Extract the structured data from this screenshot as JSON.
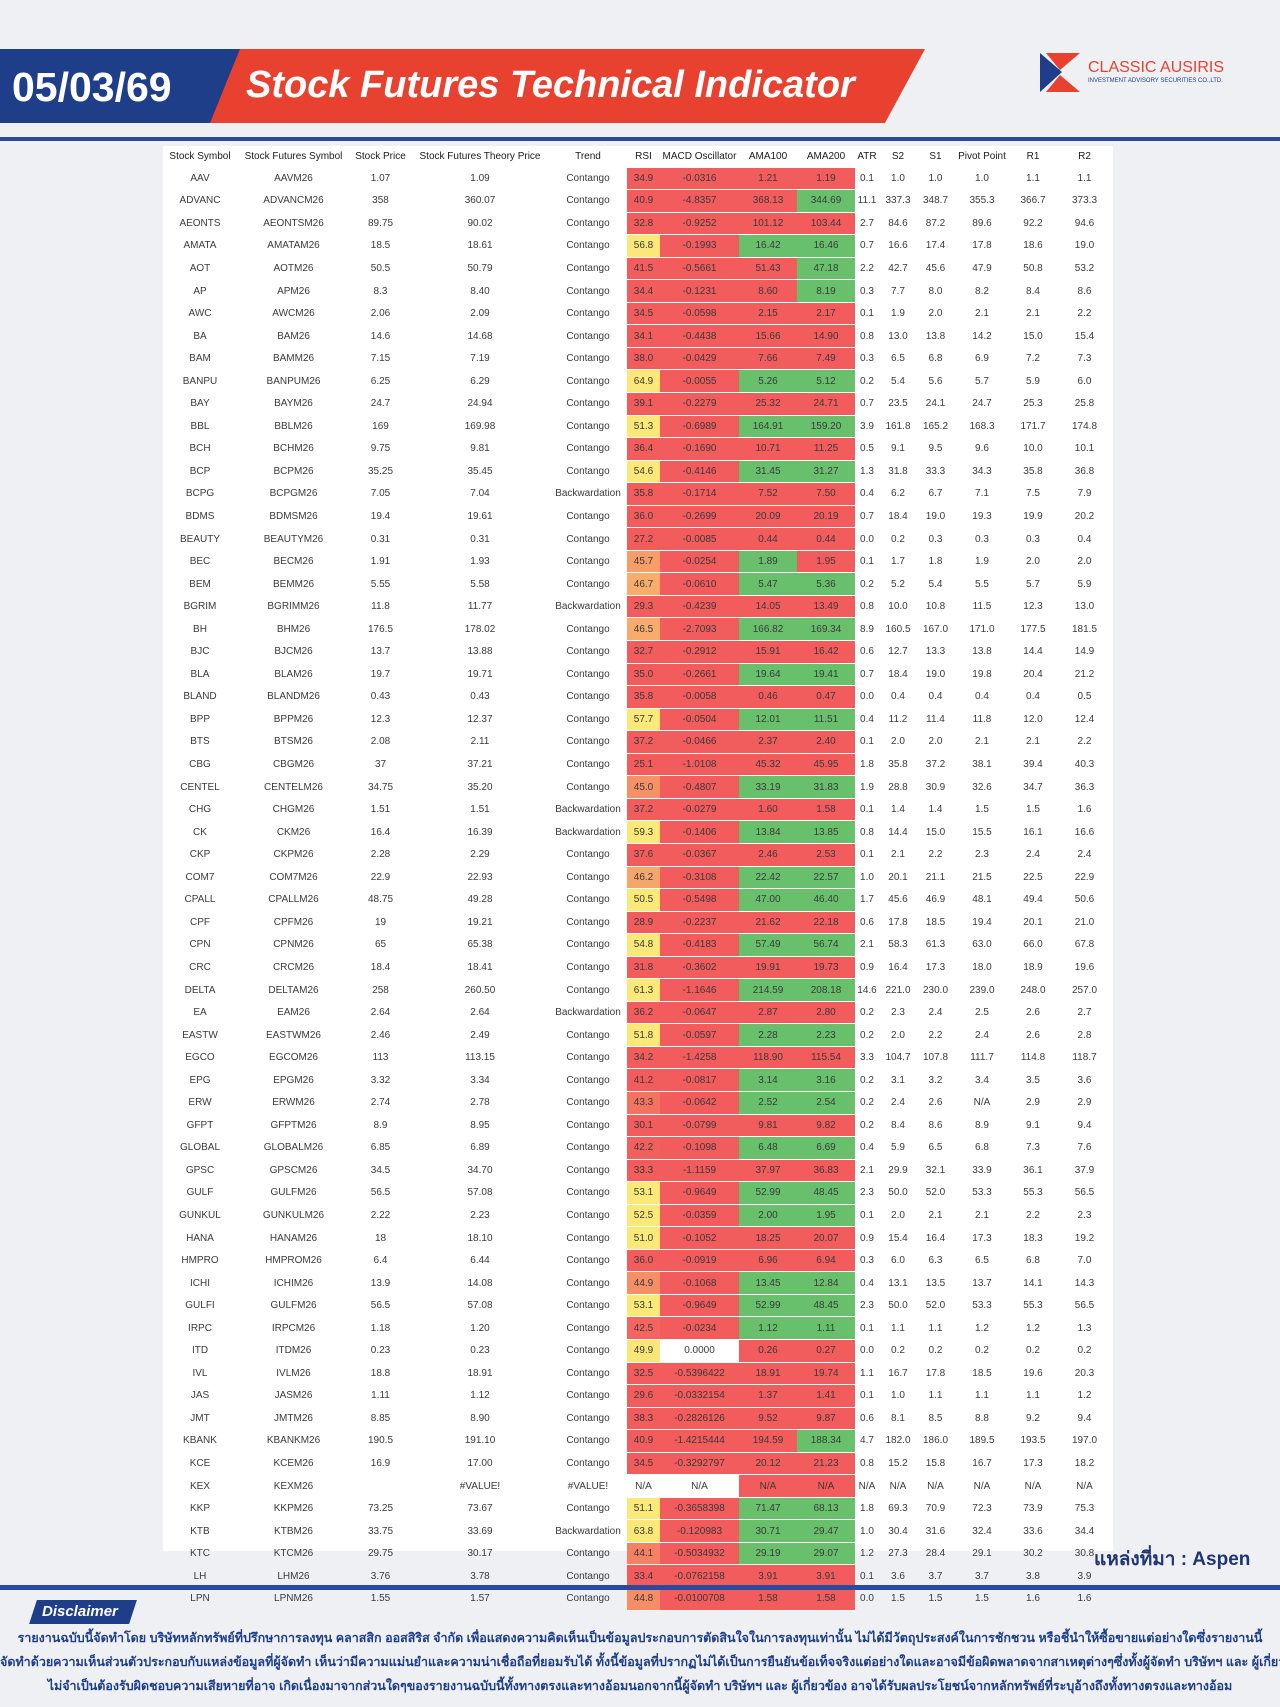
{
  "header": {
    "date": "05/03/69",
    "title": "Stock Futures Technical Indicator",
    "logo": {
      "name": "CLASSIC AUSIRIS",
      "tagline": "INVESTMENT ADVISORY SECURITIES CO.,LTD."
    }
  },
  "table": {
    "columns": [
      "Stock Symbol",
      "Stock Futures Symbol",
      "Stock Price",
      "Stock Futures Theory Price",
      "Trend",
      "RSI",
      "MACD Oscillator",
      "AMA100",
      "AMA200",
      "ATR",
      "S2",
      "S1",
      "Pivot Point",
      "R1",
      "R2"
    ],
    "rows": [
      [
        "AAV",
        "AAVM26",
        "1.07",
        "1.09",
        "Contango",
        "34.9",
        "-0.0316",
        "1.21",
        "1.19",
        "0.1",
        "1.0",
        "1.0",
        "1.0",
        "1.1",
        "1.1"
      ],
      [
        "ADVANC",
        "ADVANCM26",
        "358",
        "360.07",
        "Contango",
        "40.9",
        "-4.8357",
        "368.13",
        "344.69",
        "11.1",
        "337.3",
        "348.7",
        "355.3",
        "366.7",
        "373.3"
      ],
      [
        "AEONTS",
        "AEONTSM26",
        "89.75",
        "90.02",
        "Contango",
        "32.8",
        "-0.9252",
        "101.12",
        "103.44",
        "2.7",
        "84.6",
        "87.2",
        "89.6",
        "92.2",
        "94.6"
      ],
      [
        "AMATA",
        "AMATAM26",
        "18.5",
        "18.61",
        "Contango",
        "56.8",
        "-0.1993",
        "16.42",
        "16.46",
        "0.7",
        "16.6",
        "17.4",
        "17.8",
        "18.6",
        "19.0"
      ],
      [
        "AOT",
        "AOTM26",
        "50.5",
        "50.79",
        "Contango",
        "41.5",
        "-0.5661",
        "51.43",
        "47.18",
        "2.2",
        "42.7",
        "45.6",
        "47.9",
        "50.8",
        "53.2"
      ],
      [
        "AP",
        "APM26",
        "8.3",
        "8.40",
        "Contango",
        "34.4",
        "-0.1231",
        "8.60",
        "8.19",
        "0.3",
        "7.7",
        "8.0",
        "8.2",
        "8.4",
        "8.6"
      ],
      [
        "AWC",
        "AWCM26",
        "2.06",
        "2.09",
        "Contango",
        "34.5",
        "-0.0598",
        "2.15",
        "2.17",
        "0.1",
        "1.9",
        "2.0",
        "2.1",
        "2.1",
        "2.2"
      ],
      [
        "BA",
        "BAM26",
        "14.6",
        "14.68",
        "Contango",
        "34.1",
        "-0.4438",
        "15.66",
        "14.90",
        "0.8",
        "13.0",
        "13.8",
        "14.2",
        "15.0",
        "15.4"
      ],
      [
        "BAM",
        "BAMM26",
        "7.15",
        "7.19",
        "Contango",
        "38.0",
        "-0.0429",
        "7.66",
        "7.49",
        "0.3",
        "6.5",
        "6.8",
        "6.9",
        "7.2",
        "7.3"
      ],
      [
        "BANPU",
        "BANPUM26",
        "6.25",
        "6.29",
        "Contango",
        "64.9",
        "-0.0055",
        "5.26",
        "5.12",
        "0.2",
        "5.4",
        "5.6",
        "5.7",
        "5.9",
        "6.0"
      ],
      [
        "BAY",
        "BAYM26",
        "24.7",
        "24.94",
        "Contango",
        "39.1",
        "-0.2279",
        "25.32",
        "24.71",
        "0.7",
        "23.5",
        "24.1",
        "24.7",
        "25.3",
        "25.8"
      ],
      [
        "BBL",
        "BBLM26",
        "169",
        "169.98",
        "Contango",
        "51.3",
        "-0.6989",
        "164.91",
        "159.20",
        "3.9",
        "161.8",
        "165.2",
        "168.3",
        "171.7",
        "174.8"
      ],
      [
        "BCH",
        "BCHM26",
        "9.75",
        "9.81",
        "Contango",
        "36.4",
        "-0.1690",
        "10.71",
        "11.25",
        "0.5",
        "9.1",
        "9.5",
        "9.6",
        "10.0",
        "10.1"
      ],
      [
        "BCP",
        "BCPM26",
        "35.25",
        "35.45",
        "Contango",
        "54.6",
        "-0.4146",
        "31.45",
        "31.27",
        "1.3",
        "31.8",
        "33.3",
        "34.3",
        "35.8",
        "36.8"
      ],
      [
        "BCPG",
        "BCPGM26",
        "7.05",
        "7.04",
        "Backwardation",
        "35.8",
        "-0.1714",
        "7.52",
        "7.50",
        "0.4",
        "6.2",
        "6.7",
        "7.1",
        "7.5",
        "7.9"
      ],
      [
        "BDMS",
        "BDMSM26",
        "19.4",
        "19.61",
        "Contango",
        "36.0",
        "-0.2699",
        "20.09",
        "20.19",
        "0.7",
        "18.4",
        "19.0",
        "19.3",
        "19.9",
        "20.2"
      ],
      [
        "BEAUTY",
        "BEAUTYM26",
        "0.31",
        "0.31",
        "Contango",
        "27.2",
        "-0.0085",
        "0.44",
        "0.44",
        "0.0",
        "0.2",
        "0.3",
        "0.3",
        "0.3",
        "0.4"
      ],
      [
        "BEC",
        "BECM26",
        "1.91",
        "1.93",
        "Contango",
        "45.7",
        "-0.0254",
        "1.89",
        "1.95",
        "0.1",
        "1.7",
        "1.8",
        "1.9",
        "2.0",
        "2.0"
      ],
      [
        "BEM",
        "BEMM26",
        "5.55",
        "5.58",
        "Contango",
        "46.7",
        "-0.0610",
        "5.47",
        "5.36",
        "0.2",
        "5.2",
        "5.4",
        "5.5",
        "5.7",
        "5.9"
      ],
      [
        "BGRIM",
        "BGRIMM26",
        "11.8",
        "11.77",
        "Backwardation",
        "29.3",
        "-0.4239",
        "14.05",
        "13.49",
        "0.8",
        "10.0",
        "10.8",
        "11.5",
        "12.3",
        "13.0"
      ],
      [
        "BH",
        "BHM26",
        "176.5",
        "178.02",
        "Contango",
        "46.5",
        "-2.7093",
        "166.82",
        "169.34",
        "8.9",
        "160.5",
        "167.0",
        "171.0",
        "177.5",
        "181.5"
      ],
      [
        "BJC",
        "BJCM26",
        "13.7",
        "13.88",
        "Contango",
        "32.7",
        "-0.2912",
        "15.91",
        "16.42",
        "0.6",
        "12.7",
        "13.3",
        "13.8",
        "14.4",
        "14.9"
      ],
      [
        "BLA",
        "BLAM26",
        "19.7",
        "19.71",
        "Contango",
        "35.0",
        "-0.2661",
        "19.64",
        "19.41",
        "0.7",
        "18.4",
        "19.0",
        "19.8",
        "20.4",
        "21.2"
      ],
      [
        "BLAND",
        "BLANDM26",
        "0.43",
        "0.43",
        "Contango",
        "35.8",
        "-0.0058",
        "0.46",
        "0.47",
        "0.0",
        "0.4",
        "0.4",
        "0.4",
        "0.4",
        "0.5"
      ],
      [
        "BPP",
        "BPPM26",
        "12.3",
        "12.37",
        "Contango",
        "57.7",
        "-0.0504",
        "12.01",
        "11.51",
        "0.4",
        "11.2",
        "11.4",
        "11.8",
        "12.0",
        "12.4"
      ],
      [
        "BTS",
        "BTSM26",
        "2.08",
        "2.11",
        "Contango",
        "37.2",
        "-0.0466",
        "2.37",
        "2.40",
        "0.1",
        "2.0",
        "2.0",
        "2.1",
        "2.1",
        "2.2"
      ],
      [
        "CBG",
        "CBGM26",
        "37",
        "37.21",
        "Contango",
        "25.1",
        "-1.0108",
        "45.32",
        "45.95",
        "1.8",
        "35.8",
        "37.2",
        "38.1",
        "39.4",
        "40.3"
      ],
      [
        "CENTEL",
        "CENTELM26",
        "34.75",
        "35.20",
        "Contango",
        "45.0",
        "-0.4807",
        "33.19",
        "31.83",
        "1.9",
        "28.8",
        "30.9",
        "32.6",
        "34.7",
        "36.3"
      ],
      [
        "CHG",
        "CHGM26",
        "1.51",
        "1.51",
        "Backwardation",
        "37.2",
        "-0.0279",
        "1.60",
        "1.58",
        "0.1",
        "1.4",
        "1.4",
        "1.5",
        "1.5",
        "1.6"
      ],
      [
        "CK",
        "CKM26",
        "16.4",
        "16.39",
        "Backwardation",
        "59.3",
        "-0.1406",
        "13.84",
        "13.85",
        "0.8",
        "14.4",
        "15.0",
        "15.5",
        "16.1",
        "16.6"
      ],
      [
        "CKP",
        "CKPM26",
        "2.28",
        "2.29",
        "Contango",
        "37.6",
        "-0.0367",
        "2.46",
        "2.53",
        "0.1",
        "2.1",
        "2.2",
        "2.3",
        "2.4",
        "2.4"
      ],
      [
        "COM7",
        "COM7M26",
        "22.9",
        "22.93",
        "Contango",
        "46.2",
        "-0.3108",
        "22.42",
        "22.57",
        "1.0",
        "20.1",
        "21.1",
        "21.5",
        "22.5",
        "22.9"
      ],
      [
        "CPALL",
        "CPALLM26",
        "48.75",
        "49.28",
        "Contango",
        "50.5",
        "-0.5498",
        "47.00",
        "46.40",
        "1.7",
        "45.6",
        "46.9",
        "48.1",
        "49.4",
        "50.6"
      ],
      [
        "CPF",
        "CPFM26",
        "19",
        "19.21",
        "Contango",
        "28.9",
        "-0.2237",
        "21.62",
        "22.18",
        "0.6",
        "17.8",
        "18.5",
        "19.4",
        "20.1",
        "21.0"
      ],
      [
        "CPN",
        "CPNM26",
        "65",
        "65.38",
        "Contango",
        "54.8",
        "-0.4183",
        "57.49",
        "56.74",
        "2.1",
        "58.3",
        "61.3",
        "63.0",
        "66.0",
        "67.8"
      ],
      [
        "CRC",
        "CRCM26",
        "18.4",
        "18.41",
        "Contango",
        "31.8",
        "-0.3602",
        "19.91",
        "19.73",
        "0.9",
        "16.4",
        "17.3",
        "18.0",
        "18.9",
        "19.6"
      ],
      [
        "DELTA",
        "DELTAM26",
        "258",
        "260.50",
        "Contango",
        "61.3",
        "-1.1646",
        "214.59",
        "208.18",
        "14.6",
        "221.0",
        "230.0",
        "239.0",
        "248.0",
        "257.0"
      ],
      [
        "EA",
        "EAM26",
        "2.64",
        "2.64",
        "Backwardation",
        "36.2",
        "-0.0647",
        "2.87",
        "2.80",
        "0.2",
        "2.3",
        "2.4",
        "2.5",
        "2.6",
        "2.7"
      ],
      [
        "EASTW",
        "EASTWM26",
        "2.46",
        "2.49",
        "Contango",
        "51.8",
        "-0.0597",
        "2.28",
        "2.23",
        "0.2",
        "2.0",
        "2.2",
        "2.4",
        "2.6",
        "2.8"
      ],
      [
        "EGCO",
        "EGCOM26",
        "113",
        "113.15",
        "Contango",
        "34.2",
        "-1.4258",
        "118.90",
        "115.54",
        "3.3",
        "104.7",
        "107.8",
        "111.7",
        "114.8",
        "118.7"
      ],
      [
        "EPG",
        "EPGM26",
        "3.32",
        "3.34",
        "Contango",
        "41.2",
        "-0.0817",
        "3.14",
        "3.16",
        "0.2",
        "3.1",
        "3.2",
        "3.4",
        "3.5",
        "3.6"
      ],
      [
        "ERW",
        "ERWM26",
        "2.74",
        "2.78",
        "Contango",
        "43.3",
        "-0.0642",
        "2.52",
        "2.54",
        "0.2",
        "2.4",
        "2.6",
        "N/A",
        "2.9",
        "2.9"
      ],
      [
        "GFPT",
        "GFPTM26",
        "8.9",
        "8.95",
        "Contango",
        "30.1",
        "-0.0799",
        "9.81",
        "9.82",
        "0.2",
        "8.4",
        "8.6",
        "8.9",
        "9.1",
        "9.4"
      ],
      [
        "GLOBAL",
        "GLOBALM26",
        "6.85",
        "6.89",
        "Contango",
        "42.2",
        "-0.1098",
        "6.48",
        "6.69",
        "0.4",
        "5.9",
        "6.5",
        "6.8",
        "7.3",
        "7.6"
      ],
      [
        "GPSC",
        "GPSCM26",
        "34.5",
        "34.70",
        "Contango",
        "33.3",
        "-1.1159",
        "37.97",
        "36.83",
        "2.1",
        "29.9",
        "32.1",
        "33.9",
        "36.1",
        "37.9"
      ],
      [
        "GULF",
        "GULFM26",
        "56.5",
        "57.08",
        "Contango",
        "53.1",
        "-0.9649",
        "52.99",
        "48.45",
        "2.3",
        "50.0",
        "52.0",
        "53.3",
        "55.3",
        "56.5"
      ],
      [
        "GUNKUL",
        "GUNKULM26",
        "2.22",
        "2.23",
        "Contango",
        "52.5",
        "-0.0359",
        "2.00",
        "1.95",
        "0.1",
        "2.0",
        "2.1",
        "2.1",
        "2.2",
        "2.3"
      ],
      [
        "HANA",
        "HANAM26",
        "18",
        "18.10",
        "Contango",
        "51.0",
        "-0.1052",
        "18.25",
        "20.07",
        "0.9",
        "15.4",
        "16.4",
        "17.3",
        "18.3",
        "19.2"
      ],
      [
        "HMPRO",
        "HMPROM26",
        "6.4",
        "6.44",
        "Contango",
        "36.0",
        "-0.0919",
        "6.96",
        "6.94",
        "0.3",
        "6.0",
        "6.3",
        "6.5",
        "6.8",
        "7.0"
      ],
      [
        "ICHI",
        "ICHIM26",
        "13.9",
        "14.08",
        "Contango",
        "44.9",
        "-0.1068",
        "13.45",
        "12.84",
        "0.4",
        "13.1",
        "13.5",
        "13.7",
        "14.1",
        "14.3"
      ],
      [
        "GULFI",
        "GULFM26",
        "56.5",
        "57.08",
        "Contango",
        "53.1",
        "-0.9649",
        "52.99",
        "48.45",
        "2.3",
        "50.0",
        "52.0",
        "53.3",
        "55.3",
        "56.5"
      ],
      [
        "IRPC",
        "IRPCM26",
        "1.18",
        "1.20",
        "Contango",
        "42.5",
        "-0.0234",
        "1.12",
        "1.11",
        "0.1",
        "1.1",
        "1.1",
        "1.2",
        "1.2",
        "1.3"
      ],
      [
        "ITD",
        "ITDM26",
        "0.23",
        "0.23",
        "Contango",
        "49.9",
        "0.0000",
        "0.26",
        "0.27",
        "0.0",
        "0.2",
        "0.2",
        "0.2",
        "0.2",
        "0.2"
      ],
      [
        "IVL",
        "IVLM26",
        "18.8",
        "18.91",
        "Contango",
        "32.5",
        "-0.5396422",
        "18.91",
        "19.74",
        "1.1",
        "16.7",
        "17.8",
        "18.5",
        "19.6",
        "20.3"
      ],
      [
        "JAS",
        "JASM26",
        "1.11",
        "1.12",
        "Contango",
        "29.6",
        "-0.0332154",
        "1.37",
        "1.41",
        "0.1",
        "1.0",
        "1.1",
        "1.1",
        "1.1",
        "1.2"
      ],
      [
        "JMT",
        "JMTM26",
        "8.85",
        "8.90",
        "Contango",
        "38.3",
        "-0.2826126",
        "9.52",
        "9.87",
        "0.6",
        "8.1",
        "8.5",
        "8.8",
        "9.2",
        "9.4"
      ],
      [
        "KBANK",
        "KBANKM26",
        "190.5",
        "191.10",
        "Contango",
        "40.9",
        "-1.4215444",
        "194.59",
        "188.34",
        "4.7",
        "182.0",
        "186.0",
        "189.5",
        "193.5",
        "197.0"
      ],
      [
        "KCE",
        "KCEM26",
        "16.9",
        "17.00",
        "Contango",
        "34.5",
        "-0.3292797",
        "20.12",
        "21.23",
        "0.8",
        "15.2",
        "15.8",
        "16.7",
        "17.3",
        "18.2"
      ],
      [
        "KEX",
        "KEXM26",
        null,
        "#VALUE!",
        "#VALUE!",
        "N/A",
        "N/A",
        "N/A",
        "N/A",
        "N/A",
        "N/A",
        "N/A",
        "N/A",
        "N/A",
        "N/A"
      ],
      [
        "KKP",
        "KKPM26",
        "73.25",
        "73.67",
        "Contango",
        "51.1",
        "-0.3658398",
        "71.47",
        "68.13",
        "1.8",
        "69.3",
        "70.9",
        "72.3",
        "73.9",
        "75.3"
      ],
      [
        "KTB",
        "KTBM26",
        "33.75",
        "33.69",
        "Backwardation",
        "63.8",
        "-0.120983",
        "30.71",
        "29.47",
        "1.0",
        "30.4",
        "31.6",
        "32.4",
        "33.6",
        "34.4"
      ],
      [
        "KTC",
        "KTCM26",
        "29.75",
        "30.17",
        "Contango",
        "44.1",
        "-0.5034932",
        "29.19",
        "29.07",
        "1.2",
        "27.3",
        "28.4",
        "29.1",
        "30.2",
        "30.8"
      ],
      [
        "LH",
        "LHM26",
        "3.76",
        "3.78",
        "Contango",
        "33.4",
        "-0.0762158",
        "3.91",
        "3.91",
        "0.1",
        "3.6",
        "3.7",
        "3.7",
        "3.8",
        "3.9"
      ],
      [
        "LPN",
        "LPNM26",
        "1.55",
        "1.57",
        "Contango",
        "44.8",
        "-0.0100708",
        "1.58",
        "1.58",
        "0.0",
        "1.5",
        "1.5",
        "1.5",
        "1.6",
        "1.6"
      ]
    ]
  },
  "source": "แหล่งที่มา : Aspen",
  "disclaimer": {
    "title": "Disclaimer",
    "lines": [
      "รายงานฉบับนี้จัดทำโดย บริษัทหลักทรัพย์ที่ปรึกษาการลงทุน คลาสสิก ออสสิริส จำกัด เพื่อแสดงความคิดเห็นเป็นข้อมูลประกอบการตัดสินใจในการลงทุนเท่านั้น ไม่ได้มีวัตถุประสงค์ในการชักชวน หรือชี้นำให้ซื้อขายแต่อย่างใดซึ่งรายงานนี้",
      "จัดทำด้วยความเห็นส่วนตัวประกอบกับแหล่งข้อมูลที่ผู้จัดทำ เห็นว่ามีความแม่นยำและความน่าเชื่อถือที่ยอมรับได้ ทั้งนี้ข้อมูลที่ปรากฏไม่ได้เป็นการยืนยันข้อเท็จจริงแต่อย่างใดและอาจมีข้อผิดพลาดจากสาเหตุต่างๆซึ่งทั้งผู้จัดทำ บริษัทฯ และ ผู้เกี่ยวข้อง",
      "ไม่จำเป็นต้องรับผิดชอบความเสียหายที่อาจ เกิดเนื่องมาจากส่วนใดๆของรายงานฉบับนี้ทั้งทางตรงและทางอ้อมนอกจากนี้ผู้จัดทำ บริษัทฯ และ ผู้เกี่ยวข้อง อาจได้รับผลประโยชน์จากหลักทรัพย์ที่ระบุอ้างถึงทั้งทางตรงและทางอ้อม"
    ]
  }
}
